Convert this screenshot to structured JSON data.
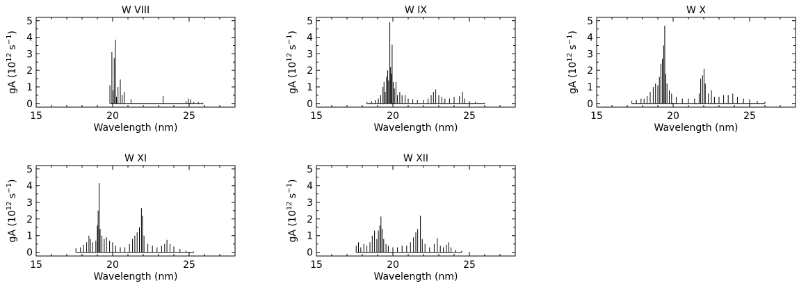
{
  "chart_data": [
    {
      "type": "bar",
      "title": "W  VIII",
      "xlabel": "Wavelength (nm)",
      "ylabel_parts": [
        "gA (10",
        "12",
        " s",
        "−1",
        ")"
      ],
      "xlim": [
        15,
        28
      ],
      "ylim": [
        0,
        5.2
      ],
      "xticks": [
        "15",
        "20",
        "25"
      ],
      "yticks": [
        "0",
        "1",
        "2",
        "3",
        "4",
        "5"
      ],
      "lines": [
        [
          19.82,
          1.1
        ],
        [
          19.95,
          3.1
        ],
        [
          20.03,
          0.8
        ],
        [
          20.1,
          2.75
        ],
        [
          20.18,
          3.85
        ],
        [
          20.25,
          0.4
        ],
        [
          20.35,
          1.0
        ],
        [
          20.5,
          1.45
        ],
        [
          20.62,
          0.5
        ],
        [
          20.75,
          0.7
        ],
        [
          21.2,
          0.25
        ],
        [
          23.3,
          0.45
        ],
        [
          24.8,
          0.15
        ],
        [
          24.95,
          0.3
        ],
        [
          25.1,
          0.25
        ],
        [
          25.3,
          0.1
        ],
        [
          25.6,
          0.1
        ],
        [
          25.9,
          0.05
        ]
      ]
    },
    {
      "type": "bar",
      "title": "W  IX",
      "xlabel": "Wavelength (nm)",
      "ylabel_parts": [
        "gA (10",
        "12",
        " s",
        "−1",
        ")"
      ],
      "xlim": [
        15,
        28
      ],
      "ylim": [
        0,
        5.2
      ],
      "xticks": [
        "15",
        "20",
        "25"
      ],
      "yticks": [
        "0",
        "1",
        "2",
        "3",
        "4",
        "5"
      ],
      "lines": [
        [
          18.3,
          0.1
        ],
        [
          18.6,
          0.15
        ],
        [
          18.85,
          0.2
        ],
        [
          19.05,
          0.3
        ],
        [
          19.2,
          0.5
        ],
        [
          19.35,
          1.0
        ],
        [
          19.42,
          1.3
        ],
        [
          19.5,
          0.7
        ],
        [
          19.58,
          1.6
        ],
        [
          19.66,
          2.0
        ],
        [
          19.72,
          1.4
        ],
        [
          19.8,
          4.9
        ],
        [
          19.85,
          2.2
        ],
        [
          19.9,
          1.8
        ],
        [
          19.95,
          3.55
        ],
        [
          20.02,
          1.3
        ],
        [
          20.1,
          0.9
        ],
        [
          20.2,
          1.3
        ],
        [
          20.3,
          0.5
        ],
        [
          20.45,
          0.7
        ],
        [
          20.6,
          0.5
        ],
        [
          20.8,
          0.5
        ],
        [
          21.0,
          0.3
        ],
        [
          21.3,
          0.25
        ],
        [
          21.6,
          0.2
        ],
        [
          22.0,
          0.2
        ],
        [
          22.3,
          0.3
        ],
        [
          22.5,
          0.5
        ],
        [
          22.65,
          0.7
        ],
        [
          22.8,
          0.85
        ],
        [
          23.0,
          0.5
        ],
        [
          23.2,
          0.4
        ],
        [
          23.4,
          0.3
        ],
        [
          23.7,
          0.3
        ],
        [
          24.0,
          0.4
        ],
        [
          24.35,
          0.45
        ],
        [
          24.55,
          0.7
        ],
        [
          24.7,
          0.3
        ],
        [
          25.0,
          0.15
        ],
        [
          25.4,
          0.1
        ],
        [
          26.0,
          0.05
        ]
      ]
    },
    {
      "type": "bar",
      "title": "W  X",
      "xlabel": "Wavelength (nm)",
      "ylabel_parts": [
        "gA (10",
        "12",
        " s",
        "−1",
        ")"
      ],
      "xlim": [
        15,
        28
      ],
      "ylim": [
        0,
        5.2
      ],
      "xticks": [
        "15",
        "20",
        "25"
      ],
      "yticks": [
        "0",
        "1",
        "2",
        "3",
        "4",
        "5"
      ],
      "lines": [
        [
          17.3,
          0.15
        ],
        [
          17.6,
          0.2
        ],
        [
          17.9,
          0.3
        ],
        [
          18.1,
          0.3
        ],
        [
          18.3,
          0.45
        ],
        [
          18.5,
          0.7
        ],
        [
          18.7,
          1.0
        ],
        [
          18.85,
          1.2
        ],
        [
          19.0,
          1.1
        ],
        [
          19.1,
          1.6
        ],
        [
          19.2,
          2.4
        ],
        [
          19.3,
          2.7
        ],
        [
          19.38,
          3.5
        ],
        [
          19.45,
          4.7
        ],
        [
          19.52,
          1.8
        ],
        [
          19.6,
          1.2
        ],
        [
          19.75,
          0.8
        ],
        [
          19.9,
          0.6
        ],
        [
          20.2,
          0.4
        ],
        [
          20.6,
          0.3
        ],
        [
          21.0,
          0.3
        ],
        [
          21.4,
          0.3
        ],
        [
          21.7,
          0.6
        ],
        [
          21.8,
          1.5
        ],
        [
          21.92,
          1.7
        ],
        [
          22.02,
          2.1
        ],
        [
          22.1,
          1.2
        ],
        [
          22.3,
          0.6
        ],
        [
          22.5,
          0.8
        ],
        [
          22.7,
          0.4
        ],
        [
          23.0,
          0.4
        ],
        [
          23.3,
          0.5
        ],
        [
          23.6,
          0.5
        ],
        [
          23.9,
          0.6
        ],
        [
          24.2,
          0.4
        ],
        [
          24.6,
          0.3
        ],
        [
          25.0,
          0.25
        ],
        [
          25.5,
          0.15
        ],
        [
          26.0,
          0.1
        ]
      ]
    },
    {
      "type": "bar",
      "title": "W  XI",
      "xlabel": "Wavelength (nm)",
      "ylabel_parts": [
        "gA (10",
        "12",
        " s",
        "−1",
        ")"
      ],
      "xlim": [
        15,
        28
      ],
      "ylim": [
        0,
        5.2
      ],
      "xticks": [
        "15",
        "20",
        "25"
      ],
      "yticks": [
        "0",
        "1",
        "2",
        "3",
        "4",
        "5"
      ],
      "lines": [
        [
          17.6,
          0.25
        ],
        [
          17.9,
          0.3
        ],
        [
          18.1,
          0.45
        ],
        [
          18.3,
          0.6
        ],
        [
          18.45,
          1.0
        ],
        [
          18.55,
          0.8
        ],
        [
          18.7,
          0.6
        ],
        [
          18.9,
          0.7
        ],
        [
          19.0,
          1.6
        ],
        [
          19.05,
          2.5
        ],
        [
          19.12,
          4.15
        ],
        [
          19.18,
          1.4
        ],
        [
          19.3,
          1.0
        ],
        [
          19.45,
          0.8
        ],
        [
          19.6,
          0.9
        ],
        [
          19.8,
          0.7
        ],
        [
          20.0,
          0.6
        ],
        [
          20.2,
          0.4
        ],
        [
          20.5,
          0.3
        ],
        [
          20.8,
          0.3
        ],
        [
          21.1,
          0.5
        ],
        [
          21.3,
          0.8
        ],
        [
          21.45,
          1.0
        ],
        [
          21.6,
          1.2
        ],
        [
          21.75,
          1.5
        ],
        [
          21.88,
          2.65
        ],
        [
          21.95,
          2.2
        ],
        [
          22.05,
          1.0
        ],
        [
          22.3,
          0.5
        ],
        [
          22.6,
          0.4
        ],
        [
          22.9,
          0.3
        ],
        [
          23.2,
          0.4
        ],
        [
          23.4,
          0.5
        ],
        [
          23.55,
          0.75
        ],
        [
          23.75,
          0.5
        ],
        [
          24.0,
          0.35
        ],
        [
          24.4,
          0.2
        ],
        [
          24.8,
          0.1
        ],
        [
          25.3,
          0.05
        ]
      ]
    },
    {
      "type": "bar",
      "title": "W  XII",
      "xlabel": "Wavelength (nm)",
      "ylabel_parts": [
        "gA (10",
        "12",
        " s",
        "−1",
        ")"
      ],
      "xlim": [
        15,
        28
      ],
      "ylim": [
        0,
        5.2
      ],
      "xticks": [
        "15",
        "20",
        "25"
      ],
      "yticks": [
        "0",
        "1",
        "2",
        "3",
        "4",
        "5"
      ],
      "lines": [
        [
          17.6,
          0.4
        ],
        [
          17.75,
          0.6
        ],
        [
          17.9,
          0.3
        ],
        [
          18.1,
          0.5
        ],
        [
          18.3,
          0.4
        ],
        [
          18.5,
          0.6
        ],
        [
          18.65,
          1.0
        ],
        [
          18.8,
          1.3
        ],
        [
          18.95,
          0.8
        ],
        [
          19.05,
          1.3
        ],
        [
          19.15,
          1.6
        ],
        [
          19.22,
          2.15
        ],
        [
          19.3,
          1.4
        ],
        [
          19.4,
          0.8
        ],
        [
          19.55,
          0.5
        ],
        [
          19.7,
          0.4
        ],
        [
          20.0,
          0.3
        ],
        [
          20.3,
          0.3
        ],
        [
          20.6,
          0.4
        ],
        [
          20.9,
          0.4
        ],
        [
          21.15,
          0.6
        ],
        [
          21.35,
          0.9
        ],
        [
          21.5,
          1.2
        ],
        [
          21.62,
          1.4
        ],
        [
          21.8,
          2.2
        ],
        [
          21.92,
          0.8
        ],
        [
          22.1,
          0.5
        ],
        [
          22.4,
          0.3
        ],
        [
          22.7,
          0.5
        ],
        [
          22.9,
          0.85
        ],
        [
          23.1,
          0.4
        ],
        [
          23.3,
          0.3
        ],
        [
          23.5,
          0.45
        ],
        [
          23.65,
          0.6
        ],
        [
          23.8,
          0.3
        ],
        [
          24.1,
          0.15
        ],
        [
          24.5,
          0.1
        ]
      ]
    }
  ]
}
